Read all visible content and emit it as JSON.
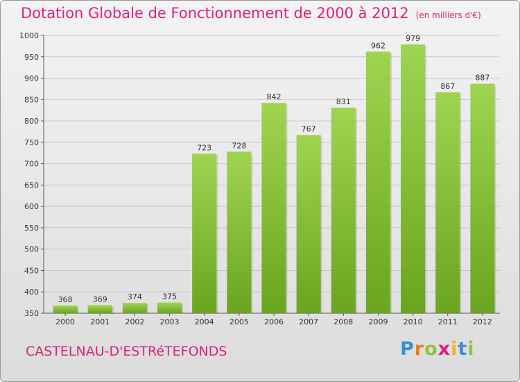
{
  "chart_data": {
    "type": "bar",
    "title": "Dotation Globale de Fonctionnement de 2000 à 2012",
    "subtitle": "(en milliers d'€)",
    "categories": [
      "2000",
      "2001",
      "2002",
      "2003",
      "2004",
      "2005",
      "2006",
      "2007",
      "2008",
      "2009",
      "2010",
      "2011",
      "2012"
    ],
    "values": [
      368,
      369,
      374,
      375,
      723,
      728,
      842,
      767,
      831,
      962,
      979,
      867,
      887
    ],
    "ylim": [
      350,
      1000
    ],
    "yticks": [
      350,
      400,
      450,
      500,
      550,
      600,
      650,
      700,
      750,
      800,
      850,
      900,
      950,
      1000
    ],
    "grid": true,
    "colors": {
      "bar_light": "#9fd451",
      "bar_dark": "#6aa51f",
      "title": "#e0207a"
    }
  },
  "footer": {
    "commune": "CASTELNAU-D'ESTRéTEFONDS",
    "logo_letters": [
      "P",
      "r",
      "o",
      "x",
      "i",
      "t",
      "i"
    ],
    "logo_colors": [
      "#3a8fd8",
      "#e8792a",
      "#8cc63f",
      "#e0207a",
      "#f5b41e",
      "#3a8fd8",
      "#8cc63f"
    ]
  }
}
